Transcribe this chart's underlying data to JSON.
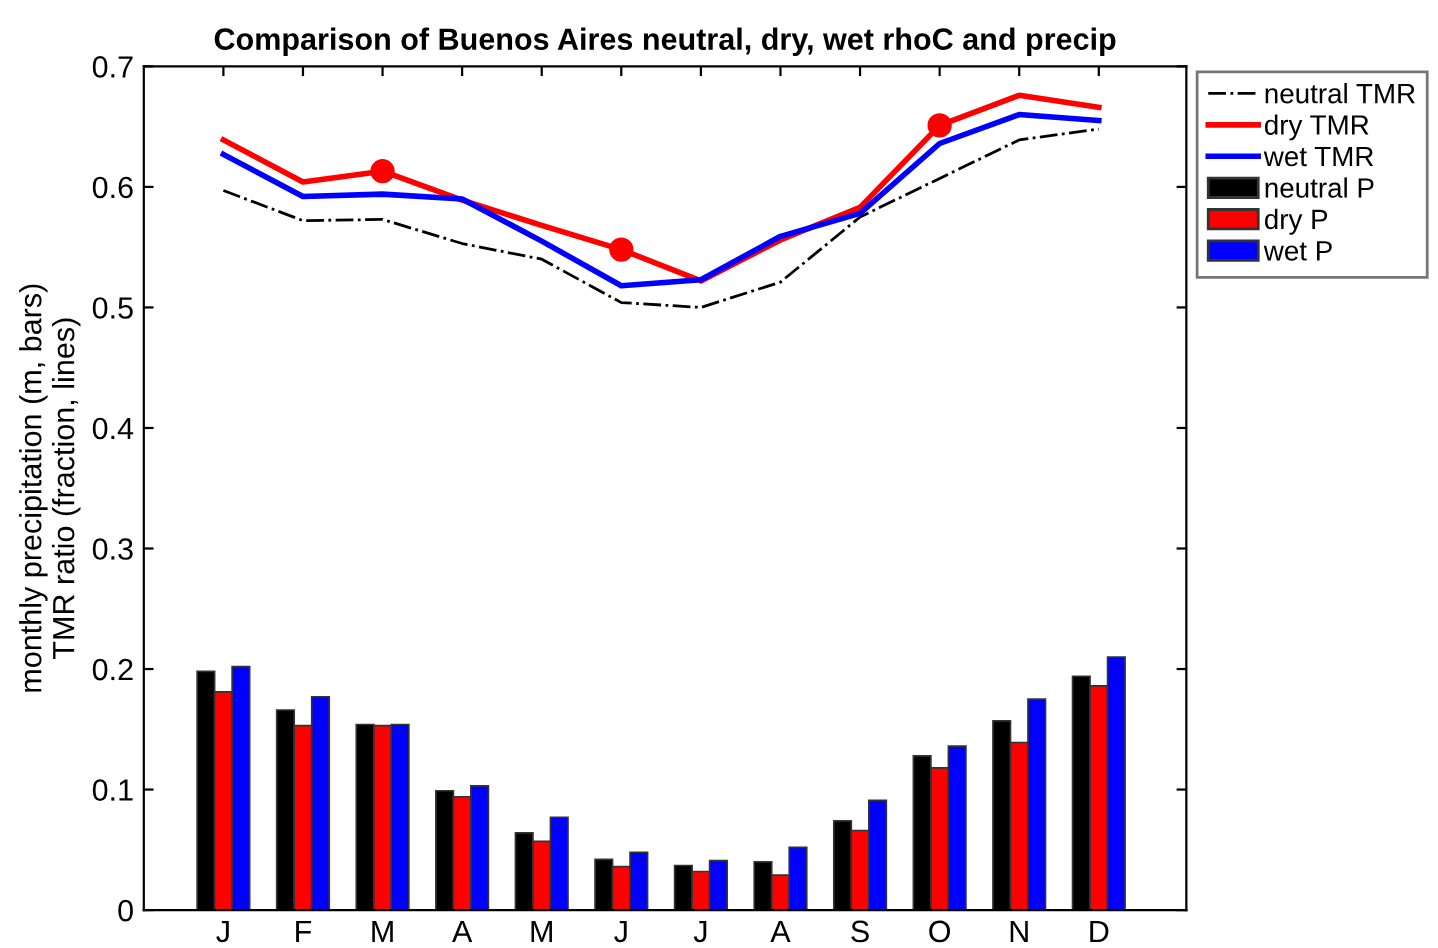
{
  "chart_data": {
    "type": "bar",
    "title": "Comparison of Buenos Aires neutral, dry, wet rhoC and precip",
    "ylabel": "monthly precipitation (m, bars)\nTMR ratio (fraction, lines)",
    "categories": [
      "J",
      "F",
      "M",
      "A",
      "M",
      "J",
      "J",
      "A",
      "S",
      "O",
      "N",
      "D"
    ],
    "series": [
      {
        "name": "neutral TMR",
        "type": "line",
        "color": "#000000",
        "line_style": "dashdot",
        "values": [
          0.597,
          0.572,
          0.573,
          0.553,
          0.54,
          0.504,
          0.5,
          0.521,
          0.575,
          0.607,
          0.639,
          0.648
        ]
      },
      {
        "name": "dry TMR",
        "type": "line",
        "color": "#ff0000",
        "line_style": "solid",
        "values": [
          0.639,
          0.604,
          0.613,
          0.589,
          0.568,
          0.548,
          0.522,
          0.556,
          0.583,
          0.651,
          0.676,
          0.666
        ]
      },
      {
        "name": "wet TMR",
        "type": "line",
        "color": "#0000ff",
        "line_style": "solid",
        "values": [
          0.627,
          0.592,
          0.594,
          0.59,
          0.555,
          0.518,
          0.523,
          0.559,
          0.578,
          0.636,
          0.66,
          0.655
        ]
      },
      {
        "name": "neutral P",
        "color": "#000000",
        "values": [
          0.198,
          0.166,
          0.154,
          0.099,
          0.064,
          0.042,
          0.037,
          0.04,
          0.074,
          0.128,
          0.157,
          0.194
        ]
      },
      {
        "name": "dry P",
        "color": "#ff0000",
        "values": [
          0.181,
          0.153,
          0.153,
          0.094,
          0.057,
          0.036,
          0.032,
          0.029,
          0.066,
          0.118,
          0.139,
          0.186
        ]
      },
      {
        "name": "wet P",
        "color": "#0000ff",
        "values": [
          0.202,
          0.177,
          0.154,
          0.103,
          0.077,
          0.048,
          0.041,
          0.052,
          0.091,
          0.136,
          0.175,
          0.21
        ]
      },
      {
        "type": "scatter",
        "color": "#ff0000",
        "marker": "circle",
        "values": [
          null,
          null,
          0.613,
          null,
          null,
          0.548,
          null,
          null,
          null,
          0.651,
          null,
          null
        ]
      }
    ],
    "ylim": [
      0,
      0.7
    ],
    "yticks": [
      0,
      0.1,
      0.2,
      0.3,
      0.4,
      0.5,
      0.6,
      0.7
    ],
    "grid": false,
    "legend": "top right"
  }
}
